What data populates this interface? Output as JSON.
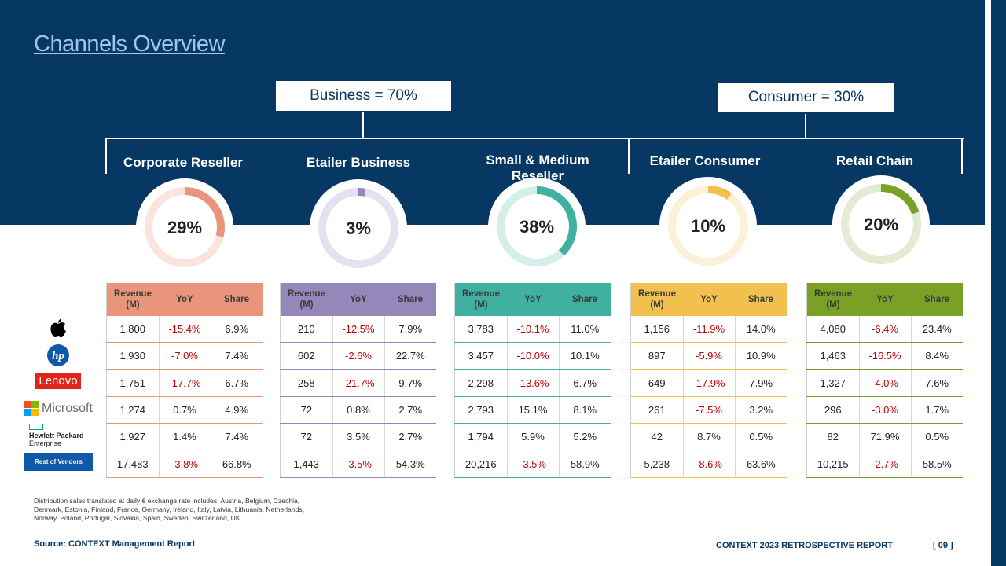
{
  "title": "Channels Overview",
  "segments": {
    "business": "Business = 70%",
    "consumer": "Consumer = 30%"
  },
  "headers": {
    "revenue": "Revenue (M)",
    "yoy": "YoY",
    "share": "Share"
  },
  "vendors": {
    "rest": "Rest of Vendors",
    "hpe_line1": "Hewlett Packard",
    "hpe_line2": "Enterprise",
    "hp": "hp",
    "lenovo": "Lenovo",
    "microsoft": "Microsoft"
  },
  "channels": [
    {
      "name": "Corporate Reseller",
      "share_label": "29%",
      "share_value": 29,
      "color": "#e8957c",
      "track": "#fbe4dc",
      "rows": [
        [
          "1,800",
          "-15.4%",
          "6.9%"
        ],
        [
          "1,930",
          "-7.0%",
          "7.4%"
        ],
        [
          "1,751",
          "-17.7%",
          "6.7%"
        ],
        [
          "1,274",
          "0.7%",
          "4.9%"
        ],
        [
          "1,927",
          "1.4%",
          "7.4%"
        ],
        [
          "17,483",
          "-3.8%",
          "66.8%"
        ]
      ]
    },
    {
      "name": "Etailer Business",
      "share_label": "3%",
      "share_value": 3,
      "color": "#9487b9",
      "track": "#e5e2ef",
      "rows": [
        [
          "210",
          "-12.5%",
          "7.9%"
        ],
        [
          "602",
          "-2.6%",
          "22.7%"
        ],
        [
          "258",
          "-21.7%",
          "9.7%"
        ],
        [
          "72",
          "0.8%",
          "2.7%"
        ],
        [
          "72",
          "3.5%",
          "2.7%"
        ],
        [
          "1,443",
          "-3.5%",
          "54.3%"
        ]
      ]
    },
    {
      "name": "Small & Medium Reseller",
      "share_label": "38%",
      "share_value": 38,
      "color": "#40b0a0",
      "track": "#d4eee9",
      "rows": [
        [
          "3,783",
          "-10.1%",
          "11.0%"
        ],
        [
          "3,457",
          "-10.0%",
          "10.1%"
        ],
        [
          "2,298",
          "-13.6%",
          "6.7%"
        ],
        [
          "2,793",
          "15.1%",
          "8.1%"
        ],
        [
          "1,794",
          "5.9%",
          "5.2%"
        ],
        [
          "20,216",
          "-3.5%",
          "58.9%"
        ]
      ]
    },
    {
      "name": "Etailer Consumer",
      "share_label": "10%",
      "share_value": 10,
      "color": "#f1c04f",
      "track": "#fbf1d8",
      "rows": [
        [
          "1,156",
          "-11.9%",
          "14.0%"
        ],
        [
          "897",
          "-5.9%",
          "10.9%"
        ],
        [
          "649",
          "-17.9%",
          "7.9%"
        ],
        [
          "261",
          "-7.5%",
          "3.2%"
        ],
        [
          "42",
          "8.7%",
          "0.5%"
        ],
        [
          "5,238",
          "-8.6%",
          "63.6%"
        ]
      ]
    },
    {
      "name": "Retail Chain",
      "share_label": "20%",
      "share_value": 20,
      "color": "#7ba026",
      "track": "#e3ebd3",
      "rows": [
        [
          "4,080",
          "-6.4%",
          "23.4%"
        ],
        [
          "1,463",
          "-16.5%",
          "8.4%"
        ],
        [
          "1,327",
          "-4.0%",
          "7.6%"
        ],
        [
          "296",
          "-3.0%",
          "1.7%"
        ],
        [
          "82",
          "71.9%",
          "0.5%"
        ],
        [
          "10,215",
          "-2.7%",
          "58.5%"
        ]
      ]
    }
  ],
  "footnote": {
    "line1": "Distribution sales translated at daily € exchange rate includes: Austria, Belgium, Czechia,",
    "line2": "Denmark, Estonia, Finland, France, Germany, Ireland, Italy, Latvia, Lithuania, Netherlands,",
    "line3": "Norway, Poland, Portugal, Slovakia, Spain, Sweden, Switzerland, UK"
  },
  "source": "Source: CONTEXT  Management Report",
  "report_title": "CONTEXT  2023 RETROSPECTIVE  REPORT",
  "page_number": "[ 09 ]"
}
